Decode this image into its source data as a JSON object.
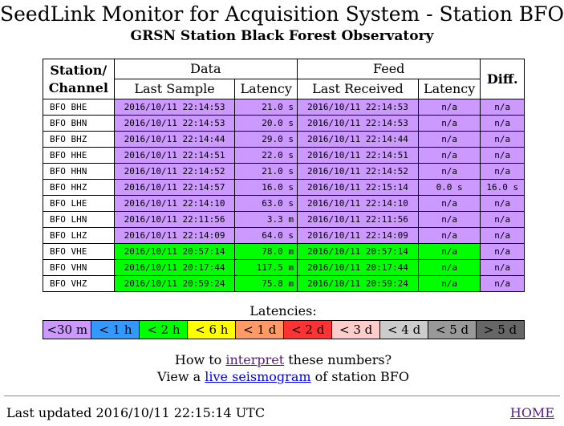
{
  "title": "SeedLink Monitor for Acquisition System - Station BFO",
  "subtitle": "GRSN Station Black Forest Observatory",
  "table": {
    "headers": {
      "station": "Station/",
      "channel": "Channel",
      "data": "Data",
      "feed": "Feed",
      "diff": "Diff.",
      "last_sample": "Last Sample",
      "latency": "Latency",
      "last_received": "Last Received",
      "feed_latency": "Latency"
    },
    "rows": [
      {
        "ch": "BFO BHE",
        "ls": "2016/10/11 22:14:53",
        "lat": "21.0 s",
        "lr": "2016/10/11 22:14:53",
        "flat": "n/a",
        "diff": "n/a",
        "dc": "#cc99ff",
        "fc": "#cc99ff"
      },
      {
        "ch": "BFO BHN",
        "ls": "2016/10/11 22:14:53",
        "lat": "20.0 s",
        "lr": "2016/10/11 22:14:53",
        "flat": "n/a",
        "diff": "n/a",
        "dc": "#cc99ff",
        "fc": "#cc99ff"
      },
      {
        "ch": "BFO BHZ",
        "ls": "2016/10/11 22:14:44",
        "lat": "29.0 s",
        "lr": "2016/10/11 22:14:44",
        "flat": "n/a",
        "diff": "n/a",
        "dc": "#cc99ff",
        "fc": "#cc99ff"
      },
      {
        "ch": "BFO HHE",
        "ls": "2016/10/11 22:14:51",
        "lat": "22.0 s",
        "lr": "2016/10/11 22:14:51",
        "flat": "n/a",
        "diff": "n/a",
        "dc": "#cc99ff",
        "fc": "#cc99ff"
      },
      {
        "ch": "BFO HHN",
        "ls": "2016/10/11 22:14:52",
        "lat": "21.0 s",
        "lr": "2016/10/11 22:14:52",
        "flat": "n/a",
        "diff": "n/a",
        "dc": "#cc99ff",
        "fc": "#cc99ff"
      },
      {
        "ch": "BFO HHZ",
        "ls": "2016/10/11 22:14:57",
        "lat": "16.0 s",
        "lr": "2016/10/11 22:15:14",
        "flat": "0.0 s",
        "diff": "16.0 s",
        "dc": "#cc99ff",
        "fc": "#cc99ff"
      },
      {
        "ch": "BFO LHE",
        "ls": "2016/10/11 22:14:10",
        "lat": "63.0 s",
        "lr": "2016/10/11 22:14:10",
        "flat": "n/a",
        "diff": "n/a",
        "dc": "#cc99ff",
        "fc": "#cc99ff"
      },
      {
        "ch": "BFO LHN",
        "ls": "2016/10/11 22:11:56",
        "lat": "3.3 m",
        "lr": "2016/10/11 22:11:56",
        "flat": "n/a",
        "diff": "n/a",
        "dc": "#cc99ff",
        "fc": "#cc99ff"
      },
      {
        "ch": "BFO LHZ",
        "ls": "2016/10/11 22:14:09",
        "lat": "64.0 s",
        "lr": "2016/10/11 22:14:09",
        "flat": "n/a",
        "diff": "n/a",
        "dc": "#cc99ff",
        "fc": "#cc99ff"
      },
      {
        "ch": "BFO VHE",
        "ls": "2016/10/11 20:57:14",
        "lat": "78.0 m",
        "lr": "2016/10/11 20:57:14",
        "flat": "n/a",
        "diff": "n/a",
        "dc": "#00ff00",
        "fc": "#00ff00"
      },
      {
        "ch": "BFO VHN",
        "ls": "2016/10/11 20:17:44",
        "lat": "117.5 m",
        "lr": "2016/10/11 20:17:44",
        "flat": "n/a",
        "diff": "n/a",
        "dc": "#00ff00",
        "fc": "#00ff00"
      },
      {
        "ch": "BFO VHZ",
        "ls": "2016/10/11 20:59:24",
        "lat": "75.8 m",
        "lr": "2016/10/11 20:59:24",
        "flat": "n/a",
        "diff": "n/a",
        "dc": "#00ff00",
        "fc": "#00ff00"
      }
    ]
  },
  "legend": {
    "title": "Latencies:",
    "items": [
      {
        "label": "<30 m",
        "color": "#cc99ff"
      },
      {
        "label": "< 1 h",
        "color": "#3399ff"
      },
      {
        "label": "< 2 h",
        "color": "#00ff00"
      },
      {
        "label": "< 6 h",
        "color": "#ffff00"
      },
      {
        "label": "< 1 d",
        "color": "#ff9966"
      },
      {
        "label": "< 2 d",
        "color": "#ff3333"
      },
      {
        "label": "< 3 d",
        "color": "#ffcccc"
      },
      {
        "label": "< 4 d",
        "color": "#cccccc"
      },
      {
        "label": "< 5 d",
        "color": "#999999"
      },
      {
        "label": "> 5 d",
        "color": "#666666"
      }
    ]
  },
  "info": {
    "line1_pre": "How to ",
    "line1_link": "interpret",
    "line1_post": " these numbers?",
    "line2_pre": "View a ",
    "line2_link": "live seismogram",
    "line2_post": " of station BFO"
  },
  "footer": {
    "updated": "Last updated 2016/10/11 22:15:14 UTC",
    "home": "HOME"
  }
}
